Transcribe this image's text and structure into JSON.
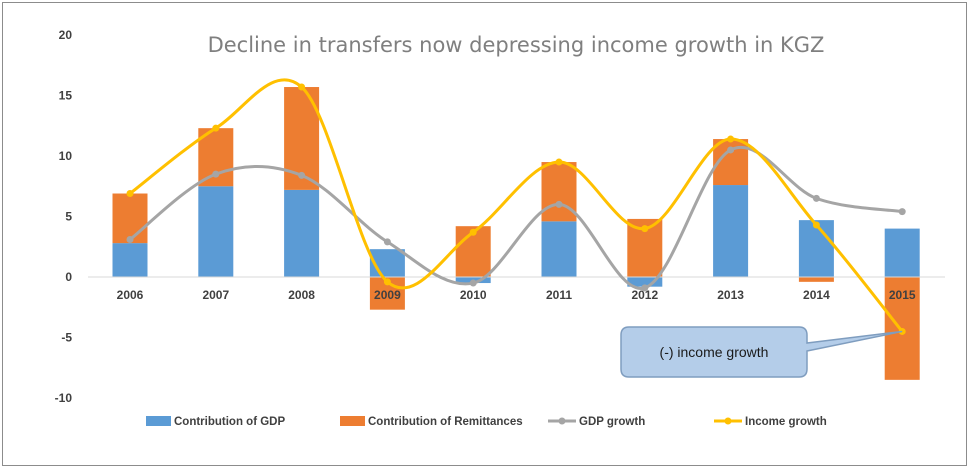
{
  "chart_data": {
    "type": "bar",
    "title": "Decline in transfers now depressing income growth in KGZ",
    "categories": [
      "2006",
      "2007",
      "2008",
      "2009",
      "2010",
      "2011",
      "2012",
      "2013",
      "2014",
      "2015"
    ],
    "ylim": [
      -10,
      20
    ],
    "yticks": [
      "20",
      "15",
      "10",
      "5",
      "0",
      "-5",
      "-10"
    ],
    "stacked": true,
    "grid": false,
    "legend_position": "bottom",
    "series": [
      {
        "name": "Contribution of GDP",
        "kind": "bar",
        "color": "#5b9bd5",
        "values": [
          2.8,
          7.5,
          7.2,
          2.3,
          -0.5,
          4.6,
          -0.8,
          7.6,
          4.7,
          4.0
        ]
      },
      {
        "name": "Contribution of Remittances",
        "kind": "bar",
        "color": "#ed7d31",
        "values": [
          4.1,
          4.8,
          8.5,
          -2.7,
          4.2,
          4.9,
          4.8,
          3.8,
          -0.4,
          -8.5
        ]
      },
      {
        "name": "GDP growth",
        "kind": "line",
        "color": "#a5a5a5",
        "values": [
          3.1,
          8.5,
          8.4,
          2.9,
          -0.5,
          6.0,
          -0.9,
          10.5,
          6.5,
          5.4
        ]
      },
      {
        "name": "Income growth",
        "kind": "line",
        "color": "#ffc000",
        "values": [
          6.9,
          12.3,
          15.7,
          -0.4,
          3.7,
          9.5,
          4.0,
          11.4,
          4.3,
          -4.5
        ]
      }
    ],
    "annotations": [
      {
        "text": "(-) income growth",
        "points_to": {
          "category": "2015",
          "series": "Income growth"
        }
      }
    ]
  }
}
